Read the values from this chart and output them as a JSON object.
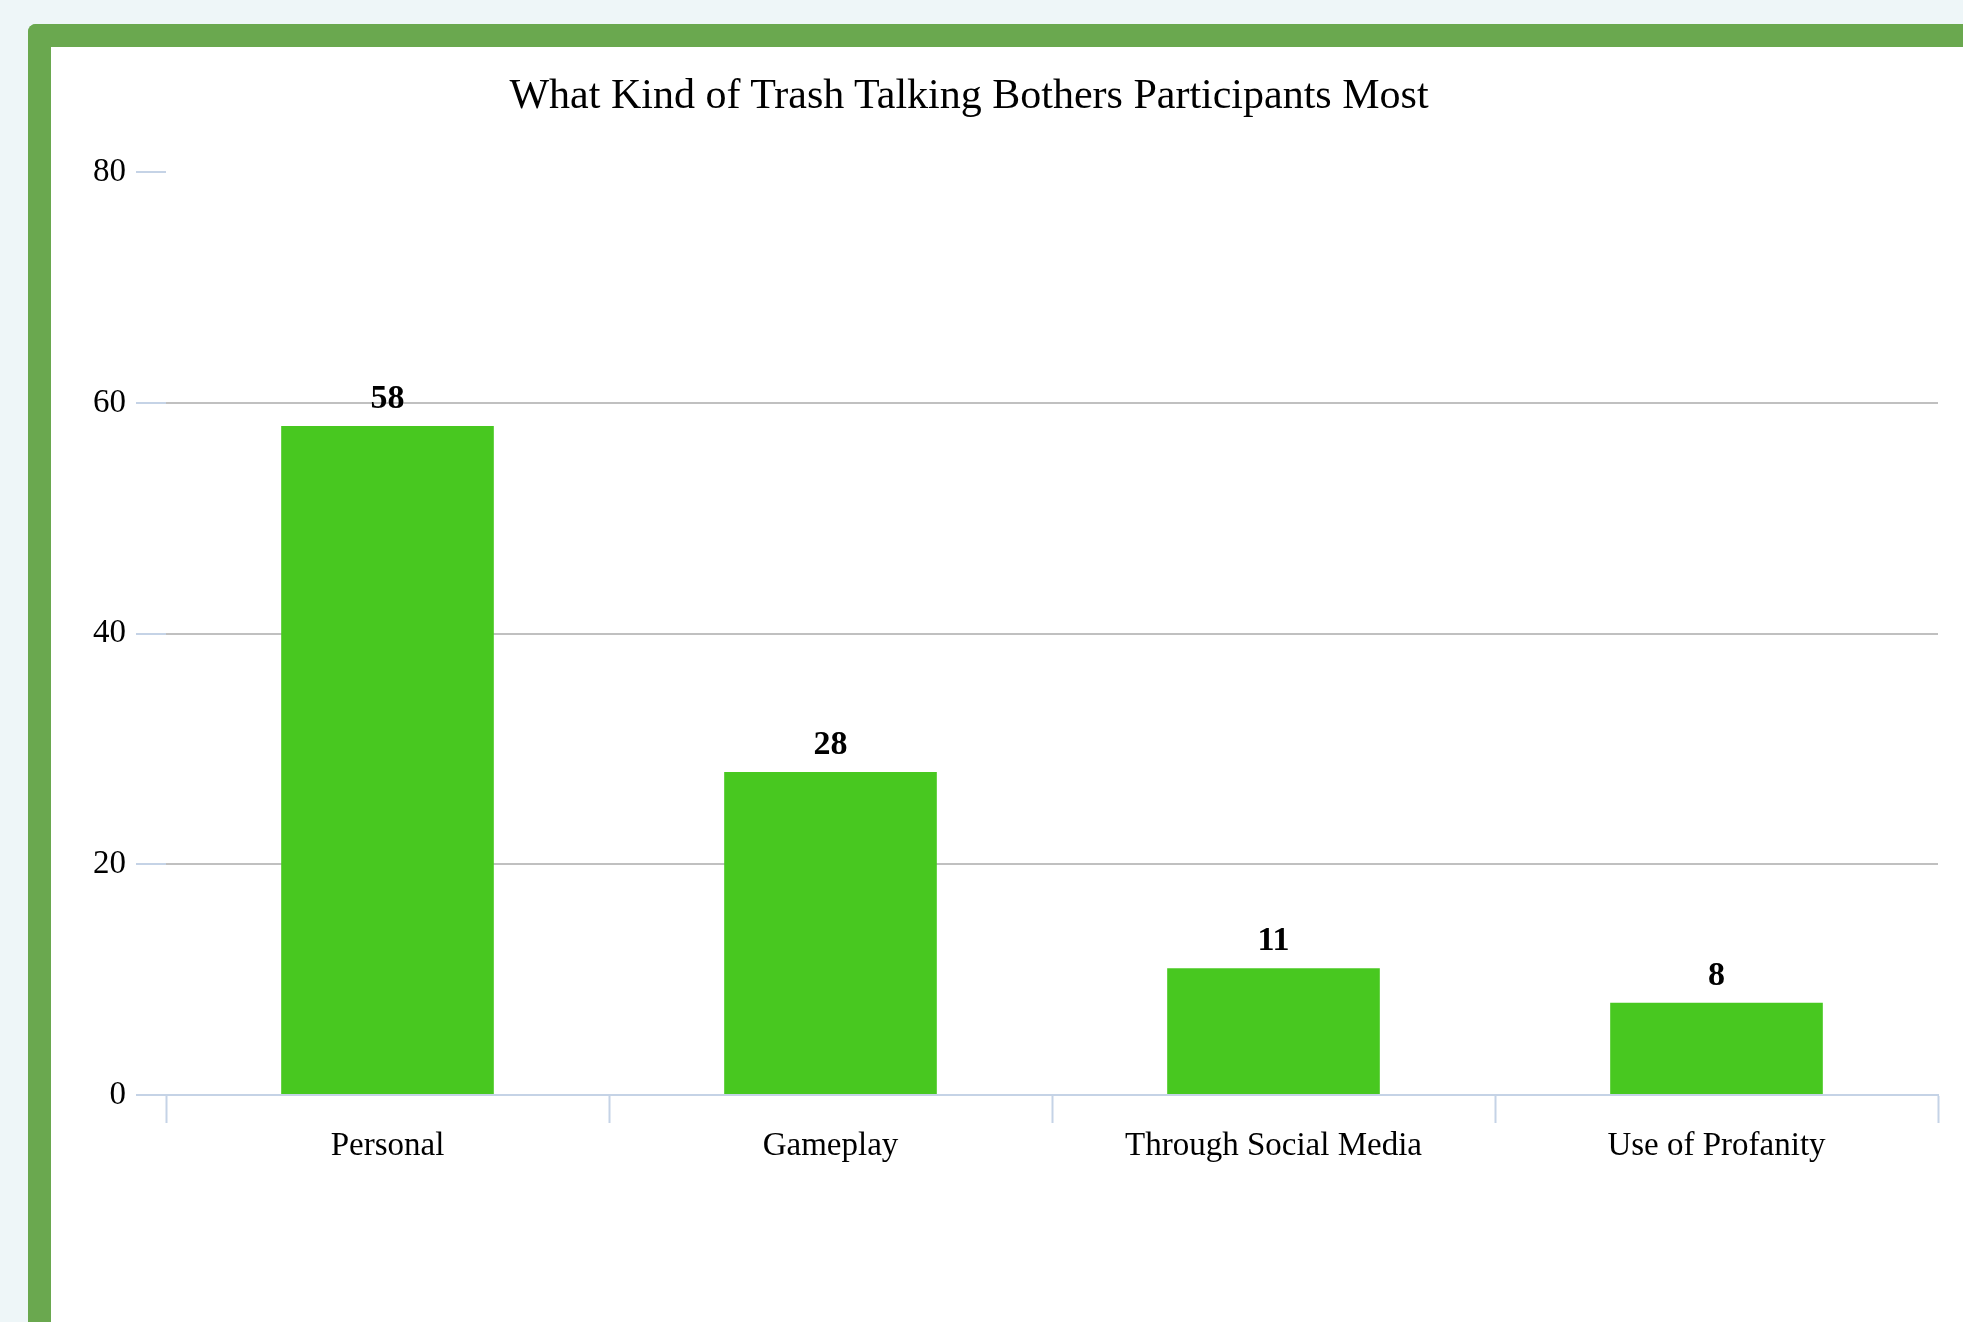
{
  "chart_data": {
    "type": "bar",
    "title": "What Kind of Trash Talking Bothers Participants Most",
    "categories": [
      "Personal",
      "Gameplay",
      "Through Social Media",
      "Use of Profanity"
    ],
    "values": [
      58,
      28,
      11,
      8
    ],
    "color": "#48c820",
    "ylim": [
      0,
      80
    ],
    "yticks": [
      0,
      20,
      40,
      60,
      80
    ],
    "grid": "y",
    "legend": false,
    "data_labels": true
  }
}
